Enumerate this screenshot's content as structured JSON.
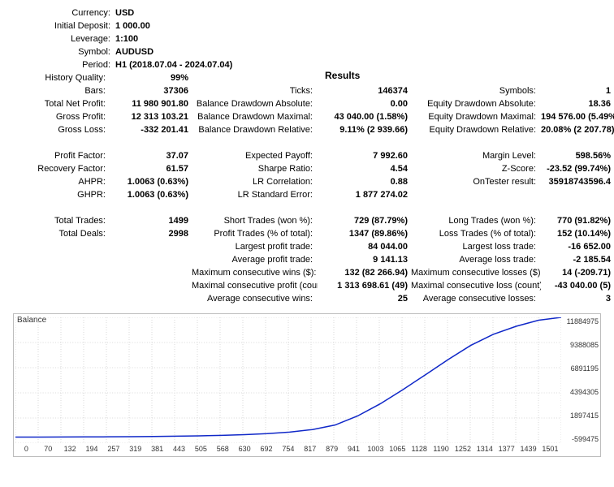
{
  "header": {
    "currency": {
      "label": "Currency:",
      "value": "USD"
    },
    "initial_deposit": {
      "label": "Initial Deposit:",
      "value": "1 000.00"
    },
    "leverage": {
      "label": "Leverage:",
      "value": "1:100"
    },
    "symbol": {
      "label": "Symbol:",
      "value": "AUDUSD"
    },
    "period": {
      "label": "Period:",
      "value": "H1 (2018.07.04 - 2024.07.04)"
    },
    "results_title": "Results"
  },
  "rows": {
    "hq": {
      "l1": "History Quality:",
      "v1": "99%",
      "l2": "",
      "v2": "",
      "l3": "",
      "v3": ""
    },
    "bars": {
      "l1": "Bars:",
      "v1": "37306",
      "l2": "Ticks:",
      "v2": "146374",
      "l3": "Symbols:",
      "v3": "1"
    },
    "tnp": {
      "l1": "Total Net Profit:",
      "v1": "11 980 901.80",
      "l2": "Balance Drawdown Absolute:",
      "v2": "0.00",
      "l3": "Equity Drawdown Absolute:",
      "v3": "18.36"
    },
    "gp": {
      "l1": "Gross Profit:",
      "v1": "12 313 103.21",
      "l2": "Balance Drawdown Maximal:",
      "v2": "43 040.00 (1.58%)",
      "l3": "Equity Drawdown Maximal:",
      "v3": "194 576.00 (5.49%)"
    },
    "gl": {
      "l1": "Gross Loss:",
      "v1": "-332 201.41",
      "l2": "Balance Drawdown Relative:",
      "v2": "9.11% (2 939.66)",
      "l3": "Equity Drawdown Relative:",
      "v3": "20.08% (2 207.78)"
    },
    "pf": {
      "l1": "Profit Factor:",
      "v1": "37.07",
      "l2": "Expected Payoff:",
      "v2": "7 992.60",
      "l3": "Margin Level:",
      "v3": "598.56%"
    },
    "rf": {
      "l1": "Recovery Factor:",
      "v1": "61.57",
      "l2": "Sharpe Ratio:",
      "v2": "4.54",
      "l3": "Z-Score:",
      "v3": "-23.52 (99.74%)"
    },
    "ahpr": {
      "l1": "AHPR:",
      "v1": "1.0063 (0.63%)",
      "l2": "LR Correlation:",
      "v2": "0.88",
      "l3": "OnTester result:",
      "v3": "35918743596.4"
    },
    "ghpr": {
      "l1": "GHPR:",
      "v1": "1.0063 (0.63%)",
      "l2": "LR Standard Error:",
      "v2": "1 877 274.02",
      "l3": "",
      "v3": ""
    },
    "tt": {
      "l1": "Total Trades:",
      "v1": "1499",
      "l2": "Short Trades (won %):",
      "v2": "729 (87.79%)",
      "l3": "Long Trades (won %):",
      "v3": "770 (91.82%)"
    },
    "td": {
      "l1": "Total Deals:",
      "v1": "2998",
      "l2": "Profit Trades (% of total):",
      "v2": "1347 (89.86%)",
      "l3": "Loss Trades (% of total):",
      "v3": "152 (10.14%)"
    },
    "lpt": {
      "l1": "",
      "v1": "",
      "l2": "Largest profit trade:",
      "v2": "84 044.00",
      "l3": "Largest loss trade:",
      "v3": "-16 652.00"
    },
    "apt": {
      "l1": "",
      "v1": "",
      "l2": "Average profit trade:",
      "v2": "9 141.13",
      "l3": "Average loss trade:",
      "v3": "-2 185.54"
    },
    "mcw": {
      "l1": "",
      "v1": "",
      "l2": "Maximum consecutive wins ($):",
      "v2": "132 (82 266.94)",
      "l3": "Maximum consecutive losses ($):",
      "v3": "14 (-209.71)"
    },
    "mcp": {
      "l1": "",
      "v1": "",
      "l2": "Maximal consecutive profit (count):",
      "v2": "1 313 698.61 (49)",
      "l3": "Maximal consecutive loss (count):",
      "v3": "-43 040.00 (5)"
    },
    "acw": {
      "l1": "",
      "v1": "",
      "l2": "Average consecutive wins:",
      "v2": "25",
      "l3": "Average consecutive losses:",
      "v3": "3"
    }
  },
  "chart": {
    "label": "Balance",
    "line_color": "#1028c8",
    "grid_color": "#d9d9d9",
    "border_color": "#bdbdbd",
    "y_ticks": [
      "11884975",
      "9388085",
      "6891195",
      "4394305",
      "1897415",
      "-599475"
    ],
    "x_ticks": [
      "0",
      "70",
      "132",
      "194",
      "257",
      "319",
      "381",
      "443",
      "505",
      "568",
      "630",
      "692",
      "754",
      "817",
      "879",
      "941",
      "1003",
      "1065",
      "1128",
      "1190",
      "1252",
      "1314",
      "1377",
      "1439",
      "1501"
    ],
    "points": [
      [
        0,
        1000
      ],
      [
        70,
        5000
      ],
      [
        132,
        12000
      ],
      [
        194,
        20000
      ],
      [
        257,
        30000
      ],
      [
        319,
        45000
      ],
      [
        381,
        70000
      ],
      [
        443,
        95000
      ],
      [
        505,
        130000
      ],
      [
        568,
        180000
      ],
      [
        630,
        250000
      ],
      [
        692,
        350000
      ],
      [
        754,
        500000
      ],
      [
        817,
        750000
      ],
      [
        879,
        1200000
      ],
      [
        941,
        2100000
      ],
      [
        1003,
        3300000
      ],
      [
        1065,
        4700000
      ],
      [
        1128,
        6200000
      ],
      [
        1190,
        7700000
      ],
      [
        1252,
        9100000
      ],
      [
        1314,
        10200000
      ],
      [
        1377,
        11000000
      ],
      [
        1439,
        11600000
      ],
      [
        1501,
        11884975
      ]
    ],
    "x_domain": [
      0,
      1501
    ],
    "y_domain": [
      -599475,
      11884975
    ]
  }
}
